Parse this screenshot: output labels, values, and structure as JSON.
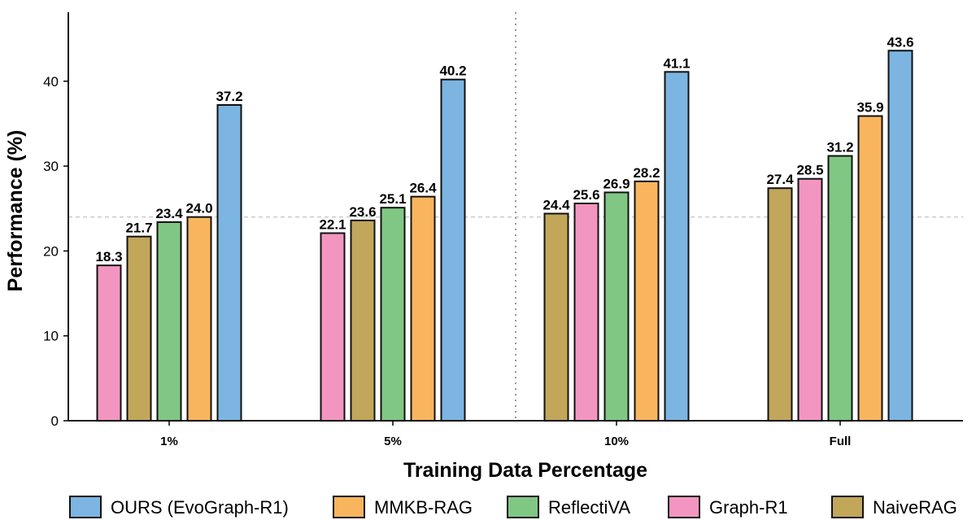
{
  "chart_data": {
    "type": "bar",
    "xlabel": "Training Data Percentage",
    "ylabel": "Performance (%)",
    "ylim": [
      0,
      48
    ],
    "yticks": [
      "0",
      "10",
      "20",
      "30",
      "40"
    ],
    "reference_line": 24.0,
    "grid": false,
    "legend_position": "bottom",
    "legend": [
      {
        "name": "OURS (EvoGraph-R1)",
        "color": "#7cb5e2"
      },
      {
        "name": "MMKB-RAG",
        "color": "#f9b55e"
      },
      {
        "name": "ReflectiVA",
        "color": "#80c784"
      },
      {
        "name": "Graph-R1",
        "color": "#f395c1"
      },
      {
        "name": "NaiveRAG",
        "color": "#c2a65a"
      }
    ],
    "groups": [
      {
        "category": "1%",
        "bars": [
          {
            "series": "Graph-R1",
            "value": 18.3
          },
          {
            "series": "NaiveRAG",
            "value": 21.7
          },
          {
            "series": "ReflectiVA",
            "value": 23.4
          },
          {
            "series": "MMKB-RAG",
            "value": 24.0
          },
          {
            "series": "OURS (EvoGraph-R1)",
            "value": 37.2
          }
        ]
      },
      {
        "category": "5%",
        "bars": [
          {
            "series": "Graph-R1",
            "value": 22.1
          },
          {
            "series": "NaiveRAG",
            "value": 23.6
          },
          {
            "series": "ReflectiVA",
            "value": 25.1
          },
          {
            "series": "MMKB-RAG",
            "value": 26.4
          },
          {
            "series": "OURS (EvoGraph-R1)",
            "value": 40.2
          }
        ]
      },
      {
        "category": "10%",
        "bars": [
          {
            "series": "NaiveRAG",
            "value": 24.4
          },
          {
            "series": "Graph-R1",
            "value": 25.6
          },
          {
            "series": "ReflectiVA",
            "value": 26.9
          },
          {
            "series": "MMKB-RAG",
            "value": 28.2
          },
          {
            "series": "OURS (EvoGraph-R1)",
            "value": 41.1
          }
        ]
      },
      {
        "category": "Full",
        "bars": [
          {
            "series": "NaiveRAG",
            "value": 27.4
          },
          {
            "series": "Graph-R1",
            "value": 28.5
          },
          {
            "series": "ReflectiVA",
            "value": 31.2
          },
          {
            "series": "MMKB-RAG",
            "value": 35.9
          },
          {
            "series": "OURS (EvoGraph-R1)",
            "value": 43.6
          }
        ]
      }
    ]
  }
}
